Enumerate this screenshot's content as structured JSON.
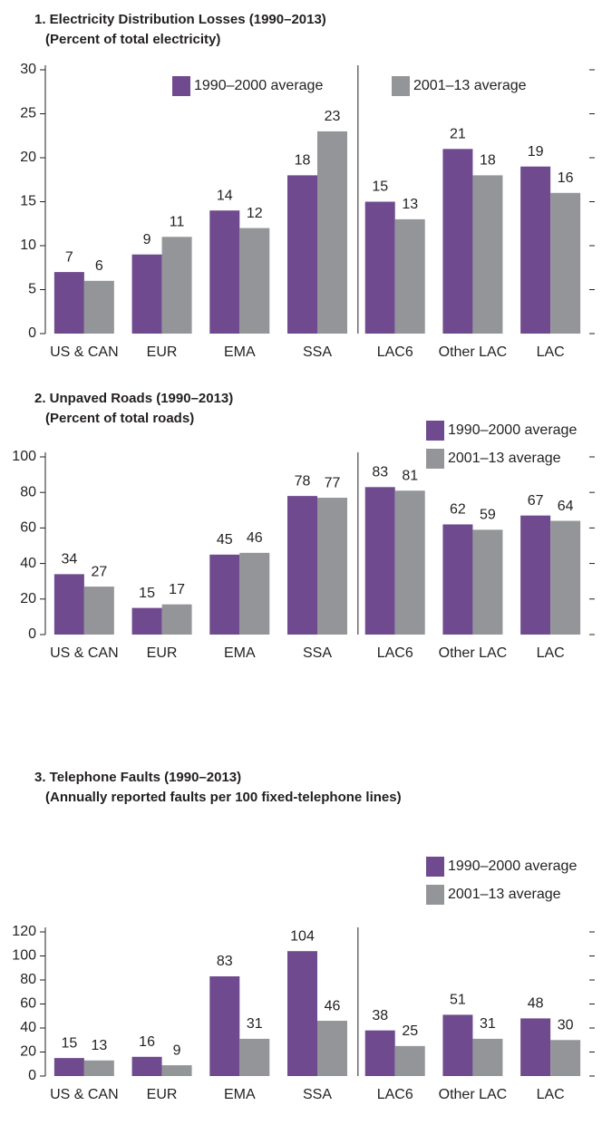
{
  "chart_data": [
    {
      "type": "bar",
      "title": "1. Electricity Distribution Losses (1990–2013)",
      "subtitle": "(Percent of total electricity)",
      "categories": [
        "US & CAN",
        "EUR",
        "EMA",
        "SSA",
        "LAC6",
        "Other LAC",
        "LAC"
      ],
      "series": [
        {
          "name": "1990–2000 average",
          "color": "#6f4a8e",
          "values": [
            7,
            9,
            14,
            18,
            15,
            21,
            19
          ]
        },
        {
          "name": "2001–13 average",
          "color": "#939598",
          "values": [
            6,
            11,
            12,
            23,
            13,
            18,
            16
          ]
        }
      ],
      "ylim": [
        0,
        30
      ],
      "yticks": [
        0,
        5,
        10,
        15,
        20,
        25,
        30
      ],
      "legend": "top"
    },
    {
      "type": "bar",
      "title": "2. Unpaved Roads (1990–2013)",
      "subtitle": "(Percent of total roads)",
      "categories": [
        "US & CAN",
        "EUR",
        "EMA",
        "SSA",
        "LAC6",
        "Other LAC",
        "LAC"
      ],
      "series": [
        {
          "name": "1990–2000 average",
          "color": "#6f4a8e",
          "values": [
            34,
            15,
            45,
            78,
            83,
            62,
            67
          ]
        },
        {
          "name": "2001–13 average",
          "color": "#939598",
          "values": [
            27,
            17,
            46,
            77,
            81,
            59,
            64
          ]
        }
      ],
      "ylim": [
        0,
        100
      ],
      "yticks": [
        0,
        20,
        40,
        60,
        80,
        100
      ],
      "legend": "upper right"
    },
    {
      "type": "bar",
      "title": "3. Telephone Faults (1990–2013)",
      "subtitle": "(Annually reported faults per 100 fixed-telephone lines)",
      "categories": [
        "US & CAN",
        "EUR",
        "EMA",
        "SSA",
        "LAC6",
        "Other LAC",
        "LAC"
      ],
      "series": [
        {
          "name": "1990–2000 average",
          "color": "#6f4a8e",
          "values": [
            15,
            16,
            83,
            104,
            38,
            51,
            48
          ]
        },
        {
          "name": "2001–13 average",
          "color": "#939598",
          "values": [
            13,
            9,
            31,
            46,
            25,
            31,
            30
          ]
        }
      ],
      "ylim": [
        0,
        120
      ],
      "yticks": [
        0,
        20,
        40,
        60,
        80,
        100,
        120
      ],
      "legend": "upper right"
    }
  ]
}
